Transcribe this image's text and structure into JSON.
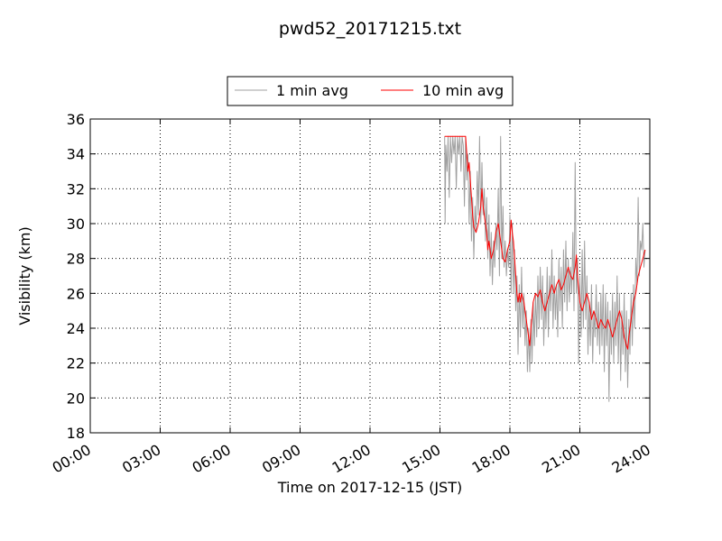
{
  "chart_data": {
    "type": "line",
    "title": "pwd52_20171215.txt",
    "xlabel": "Time on 2017-12-15 (JST)",
    "ylabel": "Visibility (km)",
    "x_unit": "hours",
    "xlim": [
      0,
      24
    ],
    "ylim": [
      18,
      36
    ],
    "xticks": [
      0,
      3,
      6,
      9,
      12,
      15,
      18,
      21,
      24
    ],
    "xtick_labels": [
      "00:00",
      "03:00",
      "06:00",
      "09:00",
      "12:00",
      "15:00",
      "18:00",
      "21:00",
      "24:00"
    ],
    "yticks": [
      18,
      20,
      22,
      24,
      26,
      28,
      30,
      32,
      34,
      36
    ],
    "ytick_labels": [
      "18",
      "20",
      "22",
      "24",
      "26",
      "28",
      "30",
      "32",
      "34",
      "36"
    ],
    "grid": true,
    "legend_position": "top-center-outside",
    "series": [
      {
        "name": "1 min avg",
        "color": "#a0a0a0",
        "points": [
          [
            15.2,
            35.0
          ],
          [
            15.22,
            30.0
          ],
          [
            15.25,
            34.5
          ],
          [
            15.3,
            33.0
          ],
          [
            15.35,
            35.0
          ],
          [
            15.4,
            31.5
          ],
          [
            15.45,
            35.0
          ],
          [
            15.5,
            33.5
          ],
          [
            15.55,
            35.0
          ],
          [
            15.6,
            34.0
          ],
          [
            15.65,
            35.0
          ],
          [
            15.7,
            32.0
          ],
          [
            15.75,
            35.0
          ],
          [
            15.8,
            34.0
          ],
          [
            15.85,
            35.0
          ],
          [
            15.9,
            33.0
          ],
          [
            15.95,
            35.0
          ],
          [
            16.0,
            34.5
          ],
          [
            16.05,
            31.0
          ],
          [
            16.1,
            35.0
          ],
          [
            16.15,
            32.5
          ],
          [
            16.2,
            34.0
          ],
          [
            16.25,
            30.0
          ],
          [
            16.3,
            33.0
          ],
          [
            16.35,
            29.0
          ],
          [
            16.4,
            31.5
          ],
          [
            16.45,
            28.0
          ],
          [
            16.5,
            31.0
          ],
          [
            16.55,
            29.5
          ],
          [
            16.6,
            33.0
          ],
          [
            16.65,
            30.5
          ],
          [
            16.7,
            35.0
          ],
          [
            16.75,
            30.0
          ],
          [
            16.8,
            33.5
          ],
          [
            16.85,
            30.5
          ],
          [
            16.9,
            32.0
          ],
          [
            16.95,
            29.0
          ],
          [
            17.0,
            31.5
          ],
          [
            17.05,
            28.0
          ],
          [
            17.1,
            30.5
          ],
          [
            17.15,
            27.0
          ],
          [
            17.2,
            29.5
          ],
          [
            17.25,
            26.5
          ],
          [
            17.3,
            29.0
          ],
          [
            17.35,
            27.5
          ],
          [
            17.4,
            30.0
          ],
          [
            17.45,
            28.5
          ],
          [
            17.5,
            32.0
          ],
          [
            17.55,
            27.0
          ],
          [
            17.6,
            35.0
          ],
          [
            17.65,
            28.0
          ],
          [
            17.7,
            31.0
          ],
          [
            17.75,
            27.5
          ],
          [
            17.8,
            29.0
          ],
          [
            17.85,
            27.0
          ],
          [
            17.9,
            28.5
          ],
          [
            17.95,
            27.5
          ],
          [
            18.0,
            30.5
          ],
          [
            18.05,
            26.0
          ],
          [
            18.1,
            30.0
          ],
          [
            18.15,
            26.0
          ],
          [
            18.2,
            28.5
          ],
          [
            18.25,
            25.0
          ],
          [
            18.3,
            27.0
          ],
          [
            18.35,
            22.5
          ],
          [
            18.4,
            26.5
          ],
          [
            18.45,
            23.5
          ],
          [
            18.5,
            27.5
          ],
          [
            18.55,
            24.0
          ],
          [
            18.6,
            26.0
          ],
          [
            18.65,
            23.0
          ],
          [
            18.7,
            25.0
          ],
          [
            18.75,
            21.5
          ],
          [
            18.8,
            24.0
          ],
          [
            18.85,
            21.5
          ],
          [
            18.9,
            24.5
          ],
          [
            18.95,
            22.0
          ],
          [
            19.0,
            25.5
          ],
          [
            19.05,
            23.0
          ],
          [
            19.1,
            26.0
          ],
          [
            19.15,
            23.5
          ],
          [
            19.2,
            27.0
          ],
          [
            19.25,
            24.0
          ],
          [
            19.3,
            27.5
          ],
          [
            19.35,
            24.5
          ],
          [
            19.4,
            27.0
          ],
          [
            19.45,
            23.0
          ],
          [
            19.5,
            26.0
          ],
          [
            19.55,
            24.0
          ],
          [
            19.6,
            27.5
          ],
          [
            19.65,
            23.5
          ],
          [
            19.7,
            27.0
          ],
          [
            19.75,
            25.0
          ],
          [
            19.8,
            28.5
          ],
          [
            19.85,
            24.0
          ],
          [
            19.9,
            27.0
          ],
          [
            19.95,
            24.5
          ],
          [
            20.0,
            26.5
          ],
          [
            20.05,
            23.5
          ],
          [
            20.1,
            28.0
          ],
          [
            20.15,
            25.0
          ],
          [
            20.2,
            27.5
          ],
          [
            20.25,
            24.0
          ],
          [
            20.3,
            28.5
          ],
          [
            20.35,
            25.5
          ],
          [
            20.4,
            29.0
          ],
          [
            20.45,
            25.0
          ],
          [
            20.5,
            28.0
          ],
          [
            20.55,
            25.5
          ],
          [
            20.6,
            27.5
          ],
          [
            20.65,
            26.0
          ],
          [
            20.7,
            29.5
          ],
          [
            20.75,
            25.0
          ],
          [
            20.8,
            33.5
          ],
          [
            20.85,
            26.0
          ],
          [
            20.9,
            28.0
          ],
          [
            20.95,
            22.0
          ],
          [
            21.0,
            27.0
          ],
          [
            21.05,
            23.5
          ],
          [
            21.1,
            28.5
          ],
          [
            21.15,
            24.0
          ],
          [
            21.2,
            29.0
          ],
          [
            21.25,
            24.5
          ],
          [
            21.3,
            27.0
          ],
          [
            21.35,
            22.5
          ],
          [
            21.4,
            25.5
          ],
          [
            21.45,
            23.0
          ],
          [
            21.5,
            26.5
          ],
          [
            21.55,
            22.0
          ],
          [
            21.6,
            25.0
          ],
          [
            21.65,
            23.5
          ],
          [
            21.7,
            26.5
          ],
          [
            21.75,
            23.0
          ],
          [
            21.8,
            25.5
          ],
          [
            21.85,
            22.5
          ],
          [
            21.9,
            26.0
          ],
          [
            21.95,
            23.0
          ],
          [
            22.0,
            26.5
          ],
          [
            22.05,
            21.5
          ],
          [
            22.1,
            26.0
          ],
          [
            22.15,
            23.0
          ],
          [
            22.2,
            25.5
          ],
          [
            22.25,
            19.8
          ],
          [
            22.3,
            25.0
          ],
          [
            22.35,
            22.5
          ],
          [
            22.4,
            26.0
          ],
          [
            22.45,
            22.0
          ],
          [
            22.5,
            25.5
          ],
          [
            22.55,
            23.0
          ],
          [
            22.6,
            27.0
          ],
          [
            22.65,
            22.0
          ],
          [
            22.7,
            26.0
          ],
          [
            22.75,
            21.0
          ],
          [
            22.8,
            25.0
          ],
          [
            22.85,
            22.5
          ],
          [
            22.9,
            26.0
          ],
          [
            22.95,
            21.5
          ],
          [
            23.0,
            25.0
          ],
          [
            23.05,
            20.6
          ],
          [
            23.1,
            24.5
          ],
          [
            23.15,
            22.5
          ],
          [
            23.2,
            26.0
          ],
          [
            23.25,
            23.0
          ],
          [
            23.3,
            26.5
          ],
          [
            23.35,
            24.0
          ],
          [
            23.4,
            28.0
          ],
          [
            23.45,
            26.5
          ],
          [
            23.5,
            31.5
          ],
          [
            23.55,
            27.0
          ],
          [
            23.6,
            29.0
          ],
          [
            23.65,
            28.5
          ],
          [
            23.7,
            30.0
          ],
          [
            23.75,
            27.5
          ],
          [
            23.8,
            28.5
          ]
        ]
      },
      {
        "name": "10 min avg",
        "color": "#ff0000",
        "points": [
          [
            15.2,
            35.0
          ],
          [
            15.5,
            35.0
          ],
          [
            15.8,
            35.0
          ],
          [
            16.1,
            35.0
          ],
          [
            16.15,
            34.0
          ],
          [
            16.2,
            33.0
          ],
          [
            16.25,
            33.5
          ],
          [
            16.3,
            32.5
          ],
          [
            16.35,
            31.5
          ],
          [
            16.4,
            30.5
          ],
          [
            16.45,
            29.8
          ],
          [
            16.55,
            29.5
          ],
          [
            16.65,
            30.0
          ],
          [
            16.75,
            31.0
          ],
          [
            16.8,
            32.0
          ],
          [
            16.85,
            31.0
          ],
          [
            16.95,
            30.0
          ],
          [
            17.0,
            29.5
          ],
          [
            17.05,
            28.5
          ],
          [
            17.1,
            29.0
          ],
          [
            17.2,
            28.0
          ],
          [
            17.3,
            28.5
          ],
          [
            17.4,
            29.5
          ],
          [
            17.5,
            30.0
          ],
          [
            17.6,
            29.0
          ],
          [
            17.7,
            28.0
          ],
          [
            17.8,
            27.8
          ],
          [
            17.9,
            28.5
          ],
          [
            18.0,
            29.0
          ],
          [
            18.05,
            30.2
          ],
          [
            18.1,
            29.5
          ],
          [
            18.15,
            29.0
          ],
          [
            18.2,
            28.0
          ],
          [
            18.25,
            27.0
          ],
          [
            18.3,
            26.0
          ],
          [
            18.35,
            25.5
          ],
          [
            18.4,
            26.0
          ],
          [
            18.45,
            25.5
          ],
          [
            18.5,
            26.0
          ],
          [
            18.6,
            25.5
          ],
          [
            18.7,
            24.5
          ],
          [
            18.8,
            23.5
          ],
          [
            18.85,
            23.0
          ],
          [
            18.9,
            24.0
          ],
          [
            19.0,
            25.5
          ],
          [
            19.1,
            26.0
          ],
          [
            19.2,
            25.8
          ],
          [
            19.3,
            26.2
          ],
          [
            19.4,
            25.5
          ],
          [
            19.5,
            25.0
          ],
          [
            19.6,
            25.5
          ],
          [
            19.7,
            26.0
          ],
          [
            19.8,
            26.5
          ],
          [
            19.9,
            26.0
          ],
          [
            20.0,
            26.5
          ],
          [
            20.1,
            26.8
          ],
          [
            20.2,
            26.2
          ],
          [
            20.3,
            26.5
          ],
          [
            20.4,
            27.0
          ],
          [
            20.5,
            27.5
          ],
          [
            20.6,
            27.0
          ],
          [
            20.7,
            26.8
          ],
          [
            20.8,
            27.5
          ],
          [
            20.85,
            28.2
          ],
          [
            20.9,
            27.0
          ],
          [
            21.0,
            25.5
          ],
          [
            21.1,
            25.0
          ],
          [
            21.2,
            25.5
          ],
          [
            21.3,
            26.0
          ],
          [
            21.4,
            25.5
          ],
          [
            21.5,
            24.5
          ],
          [
            21.6,
            25.0
          ],
          [
            21.7,
            24.5
          ],
          [
            21.8,
            24.0
          ],
          [
            21.9,
            24.5
          ],
          [
            22.0,
            24.2
          ],
          [
            22.1,
            24.0
          ],
          [
            22.2,
            24.5
          ],
          [
            22.3,
            24.0
          ],
          [
            22.4,
            23.5
          ],
          [
            22.5,
            24.0
          ],
          [
            22.6,
            24.5
          ],
          [
            22.7,
            25.0
          ],
          [
            22.8,
            24.5
          ],
          [
            22.9,
            23.5
          ],
          [
            23.0,
            23.0
          ],
          [
            23.05,
            22.8
          ],
          [
            23.1,
            23.5
          ],
          [
            23.2,
            24.5
          ],
          [
            23.3,
            25.5
          ],
          [
            23.4,
            26.0
          ],
          [
            23.5,
            27.0
          ],
          [
            23.6,
            27.5
          ],
          [
            23.7,
            28.0
          ],
          [
            23.8,
            28.5
          ]
        ]
      }
    ]
  }
}
